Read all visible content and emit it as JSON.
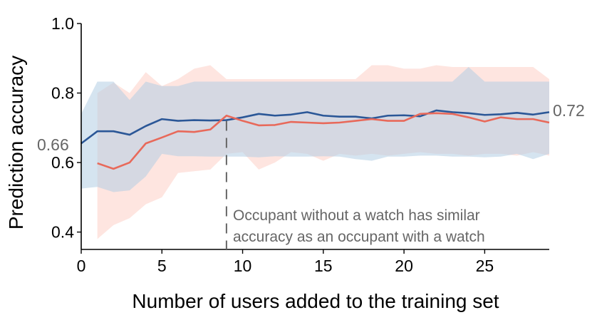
{
  "chart_data": {
    "type": "line",
    "title": "",
    "xlabel": "Number of users added to the training set",
    "ylabel": "Prediction accuracy",
    "xlim": [
      0,
      29
    ],
    "ylim": [
      0.35,
      1.0
    ],
    "xticks": [
      "0",
      "5",
      "10",
      "15",
      "20",
      "25"
    ],
    "xtick_values": [
      0,
      5,
      10,
      15,
      20,
      25
    ],
    "yticks": [
      "0.4",
      "0.6",
      "0.8",
      "1.0"
    ],
    "ytick_values": [
      0.4,
      0.6,
      0.8,
      1.0
    ],
    "grid": false,
    "legend": "none",
    "series": [
      {
        "color": "#2b5797",
        "band_color": "#b3cde3",
        "x": [
          0,
          1,
          2,
          3,
          4,
          5,
          6,
          7,
          8,
          9,
          10,
          11,
          12,
          13,
          14,
          15,
          16,
          17,
          18,
          19,
          20,
          21,
          22,
          23,
          24,
          25,
          26,
          27,
          28,
          29
        ],
        "values": [
          0.655,
          0.69,
          0.69,
          0.68,
          0.705,
          0.725,
          0.72,
          0.722,
          0.721,
          0.722,
          0.73,
          0.74,
          0.735,
          0.738,
          0.745,
          0.735,
          0.732,
          0.732,
          0.727,
          0.735,
          0.736,
          0.733,
          0.75,
          0.745,
          0.742,
          0.737,
          0.739,
          0.743,
          0.738,
          0.745
        ],
        "lower": [
          0.525,
          0.53,
          0.515,
          0.52,
          0.56,
          0.625,
          0.618,
          0.618,
          0.617,
          0.617,
          0.617,
          0.615,
          0.618,
          0.617,
          0.617,
          0.618,
          0.617,
          0.61,
          0.605,
          0.617,
          0.617,
          0.62,
          0.62,
          0.617,
          0.617,
          0.615,
          0.617,
          0.625,
          0.61,
          0.625
        ],
        "upper": [
          0.74,
          0.833,
          0.833,
          0.78,
          0.833,
          0.82,
          0.82,
          0.833,
          0.833,
          0.833,
          0.833,
          0.833,
          0.833,
          0.833,
          0.833,
          0.833,
          0.833,
          0.833,
          0.833,
          0.833,
          0.833,
          0.833,
          0.833,
          0.833,
          0.875,
          0.833,
          0.833,
          0.833,
          0.833,
          0.833
        ]
      },
      {
        "color": "#e8695a",
        "band_color": "#fddcd6",
        "x": [
          1,
          2,
          3,
          4,
          5,
          6,
          7,
          8,
          9,
          10,
          11,
          12,
          13,
          14,
          15,
          16,
          17,
          18,
          19,
          20,
          21,
          22,
          23,
          24,
          25,
          26,
          27,
          28,
          29
        ],
        "values": [
          0.598,
          0.582,
          0.6,
          0.655,
          0.672,
          0.69,
          0.688,
          0.695,
          0.735,
          0.72,
          0.707,
          0.708,
          0.717,
          0.715,
          0.713,
          0.715,
          0.72,
          0.725,
          0.72,
          0.72,
          0.74,
          0.742,
          0.74,
          0.73,
          0.718,
          0.73,
          0.725,
          0.725,
          0.715
        ],
        "lower": [
          0.38,
          0.42,
          0.44,
          0.48,
          0.5,
          0.57,
          0.575,
          0.58,
          0.625,
          0.63,
          0.58,
          0.6,
          0.63,
          0.625,
          0.605,
          0.625,
          0.62,
          0.625,
          0.62,
          0.625,
          0.63,
          0.625,
          0.625,
          0.62,
          0.625,
          0.625,
          0.62,
          0.63,
          0.62
        ],
        "upper": [
          0.8,
          0.83,
          0.8,
          0.86,
          0.82,
          0.84,
          0.87,
          0.88,
          0.84,
          0.84,
          0.84,
          0.84,
          0.84,
          0.84,
          0.84,
          0.84,
          0.84,
          0.88,
          0.88,
          0.87,
          0.87,
          0.88,
          0.875,
          0.875,
          0.875,
          0.875,
          0.875,
          0.875,
          0.84
        ]
      }
    ],
    "annotations": {
      "start_value_label": "0.66",
      "end_value_label": "0.72",
      "vline_x": 9,
      "note_line1": "Occupant without a watch has similar",
      "note_line2": "accuracy as an occupant with a watch",
      "note_color": "#666666"
    }
  }
}
